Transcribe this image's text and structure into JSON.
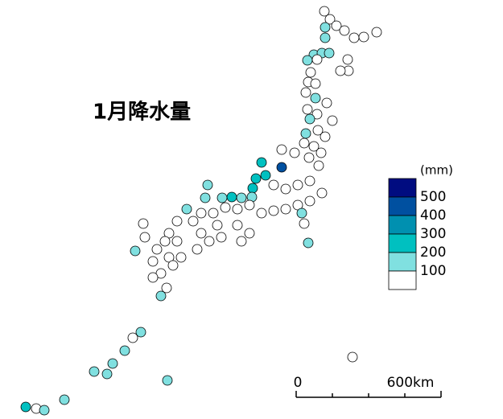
{
  "title": "1月降水量",
  "legend": {
    "unit": "(mm)",
    "breaks": [
      500,
      400,
      300,
      200,
      100
    ],
    "colors": [
      "#000c80",
      "#0050a0",
      "#0090b0",
      "#00c0c0",
      "#80e0e0",
      "#ffffff"
    ]
  },
  "scale": {
    "start": "0",
    "end": "600km"
  }
}
